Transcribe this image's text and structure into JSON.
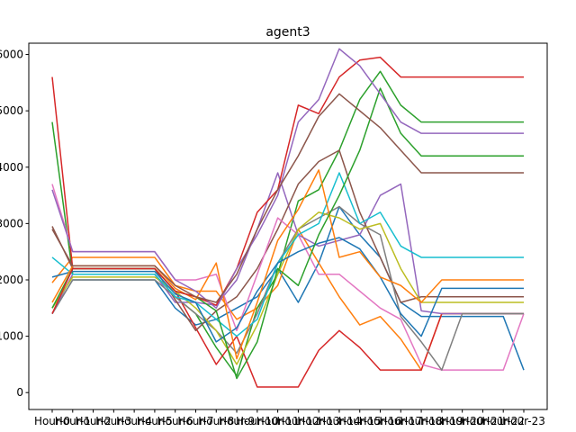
{
  "chart_data": {
    "type": "line",
    "title": "agent3",
    "xlabel": "",
    "ylabel": "",
    "categories": [
      "Hour-0",
      "Hour-1",
      "Hour-2",
      "Hour-3",
      "Hour-4",
      "Hour-5",
      "Hour-6",
      "Hour-7",
      "Hour-8",
      "Hour-9",
      "Hour-10",
      "Hour-11",
      "Hour-12",
      "Hour-13",
      "Hour-14",
      "Hour-15",
      "Hour-16",
      "Hour-17",
      "Hour-18",
      "Hour-19",
      "Hour-20",
      "Hour-21",
      "Hour-22",
      "Hour-23"
    ],
    "category_labels": [
      "Hour-0",
      "Hour-1",
      "Hour-2",
      "Hour-3",
      "Hour-4",
      "Hour-5",
      "Hour-6",
      "Hour-7",
      "Hour-8",
      "Hour-9",
      "Hour-10",
      "Hour-11",
      "Hour-12",
      "Hour-13",
      "Hour-14",
      "Hour-15",
      "Hour-16",
      "Hour-17",
      "Hour-18",
      "Hour-19",
      "Hour-20",
      "Hour-21",
      "Hour-22",
      "Hour-23"
    ],
    "ylim": [
      -300,
      6200
    ],
    "yticks": [
      0,
      1000,
      2000,
      3000,
      4000,
      5000,
      6000
    ],
    "ytick_labels": [
      "0",
      "1000",
      "2000",
      "3000",
      "4000",
      "5000",
      "6000"
    ],
    "grid": false,
    "legend": "none",
    "series": [
      {
        "color": "#1f77b4",
        "values": [
          1400,
          2000,
          2000,
          2000,
          2000,
          2000,
          1500,
          1200,
          1300,
          1500,
          1700,
          2200,
          1600,
          2300,
          3300,
          2800,
          2400,
          1600,
          1350,
          1350,
          1350,
          1350,
          1350,
          400
        ]
      },
      {
        "color": "#ff7f0e",
        "values": [
          1950,
          2400,
          2400,
          2400,
          2400,
          2400,
          1900,
          1800,
          1800,
          1300,
          1500,
          1900,
          2900,
          2300,
          1700,
          1200,
          1350,
          950,
          400,
          1400,
          1400,
          1400,
          1400,
          1400
        ]
      },
      {
        "color": "#2ca02c",
        "values": [
          4800,
          2100,
          2100,
          2100,
          2100,
          2100,
          1700,
          1400,
          800,
          300,
          1500,
          2100,
          3400,
          3600,
          4300,
          5200,
          5700,
          5100,
          4800,
          4800,
          4800,
          4800,
          4800,
          4800
        ]
      },
      {
        "color": "#d62728",
        "values": [
          5600,
          2200,
          2200,
          2200,
          2200,
          2200,
          1800,
          1150,
          500,
          1000,
          100,
          100,
          100,
          750,
          1100,
          800,
          400,
          400,
          400,
          1400,
          1400,
          1400,
          1400,
          1400
        ]
      },
      {
        "color": "#9467bd",
        "values": [
          1400,
          2100,
          2100,
          2100,
          2100,
          2100,
          1600,
          1600,
          1550,
          2000,
          2900,
          3900,
          2800,
          2600,
          2700,
          2800,
          3500,
          3700,
          1450,
          1400,
          1400,
          1400,
          1400,
          1400
        ]
      },
      {
        "color": "#8c564b",
        "values": [
          2950,
          2200,
          2200,
          2200,
          2200,
          2200,
          1650,
          1100,
          1450,
          1700,
          2200,
          2900,
          3700,
          4100,
          4300,
          3200,
          2400,
          1600,
          1700,
          1700,
          1700,
          1700,
          1700,
          1700
        ]
      },
      {
        "color": "#e377c2",
        "values": [
          3700,
          2500,
          2500,
          2500,
          2500,
          2500,
          2000,
          2000,
          2100,
          1100,
          2100,
          3100,
          2800,
          2100,
          2100,
          1800,
          1500,
          1300,
          500,
          400,
          400,
          400,
          400,
          1400
        ]
      },
      {
        "color": "#7f7f7f",
        "values": [
          1400,
          2000,
          2000,
          2000,
          2000,
          2000,
          1700,
          1400,
          1100,
          700,
          1400,
          2300,
          2900,
          3100,
          3300,
          3000,
          2800,
          1350,
          900,
          400,
          1400,
          1400,
          1400,
          1400
        ]
      },
      {
        "color": "#bcbd22",
        "values": [
          1500,
          2050,
          2050,
          2050,
          2050,
          2050,
          1800,
          1500,
          1100,
          500,
          1200,
          2100,
          2900,
          3200,
          3100,
          2900,
          3000,
          2200,
          1600,
          1600,
          1600,
          1600,
          1600,
          1600
        ]
      },
      {
        "color": "#17becf",
        "values": [
          2400,
          2100,
          2100,
          2100,
          2100,
          2100,
          1700,
          1600,
          1300,
          1000,
          1300,
          2300,
          2800,
          3000,
          3900,
          3000,
          3200,
          2600,
          2400,
          2400,
          2400,
          2400,
          2400,
          2400
        ]
      },
      {
        "color": "#1f77b4",
        "values": [
          2050,
          2150,
          2150,
          2150,
          2150,
          2150,
          1750,
          1600,
          900,
          1150,
          1800,
          2300,
          2500,
          2650,
          2750,
          2550,
          2050,
          1400,
          1000,
          1850,
          1850,
          1850,
          1850,
          1850
        ]
      },
      {
        "color": "#ff7f0e",
        "values": [
          1600,
          2250,
          2250,
          2250,
          2250,
          2250,
          1850,
          1650,
          2300,
          600,
          1600,
          2700,
          3250,
          3950,
          2400,
          2500,
          2050,
          1900,
          1600,
          2000,
          2000,
          2000,
          2000,
          2000
        ]
      },
      {
        "color": "#2ca02c",
        "values": [
          1500,
          2200,
          2200,
          2200,
          2200,
          2200,
          1800,
          1700,
          1450,
          250,
          900,
          2200,
          1900,
          2800,
          3500,
          4300,
          5400,
          4600,
          4200,
          4200,
          4200,
          4200,
          4200,
          4200
        ]
      },
      {
        "color": "#d62728",
        "values": [
          1400,
          2200,
          2200,
          2200,
          2200,
          2200,
          1800,
          1700,
          1550,
          2200,
          3200,
          3600,
          5100,
          4950,
          5600,
          5900,
          5950,
          5600,
          5600,
          5600,
          5600,
          5600,
          5600,
          5600
        ]
      },
      {
        "color": "#9467bd",
        "values": [
          3600,
          2500,
          2500,
          2500,
          2500,
          2500,
          2000,
          1800,
          1500,
          2200,
          2800,
          3500,
          4800,
          5200,
          6100,
          5800,
          5300,
          4800,
          4600,
          4600,
          4600,
          4600,
          4600,
          4600
        ]
      },
      {
        "color": "#8c564b",
        "values": [
          2900,
          2250,
          2250,
          2250,
          2250,
          2250,
          1900,
          1700,
          1600,
          2100,
          2900,
          3600,
          4200,
          4900,
          5300,
          5000,
          4700,
          4300,
          3900,
          3900,
          3900,
          3900,
          3900,
          3900
        ]
      }
    ]
  }
}
